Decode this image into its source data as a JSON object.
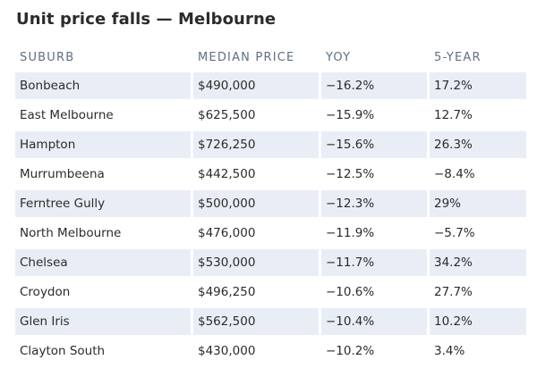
{
  "chart_data": {
    "type": "table",
    "title": "Unit price falls — Melbourne",
    "columns": [
      "SUBURB",
      "MEDIAN PRICE",
      "YOY",
      "5-YEAR"
    ],
    "rows": [
      [
        "Bonbeach",
        "$490,000",
        "−16.2%",
        "17.2%"
      ],
      [
        "East Melbourne",
        "$625,500",
        "−15.9%",
        "12.7%"
      ],
      [
        "Hampton",
        "$726,250",
        "−15.6%",
        "26.3%"
      ],
      [
        "Murrumbeena",
        "$442,500",
        "−12.5%",
        "−8.4%"
      ],
      [
        "Ferntree Gully",
        "$500,000",
        "−12.3%",
        "29%"
      ],
      [
        "North Melbourne",
        "$476,000",
        "−11.9%",
        "−5.7%"
      ],
      [
        "Chelsea",
        "$530,000",
        "−11.7%",
        "34.2%"
      ],
      [
        "Croydon",
        "$496,250",
        "−10.6%",
        "27.7%"
      ],
      [
        "Glen Iris",
        "$562,500",
        "−10.4%",
        "10.2%"
      ],
      [
        "Clayton South",
        "$430,000",
        "−10.2%",
        "3.4%"
      ]
    ]
  },
  "colors": {
    "row_shade": "#e9eef6",
    "header_text": "#5f6f83",
    "body_text": "#2b2b2b"
  }
}
